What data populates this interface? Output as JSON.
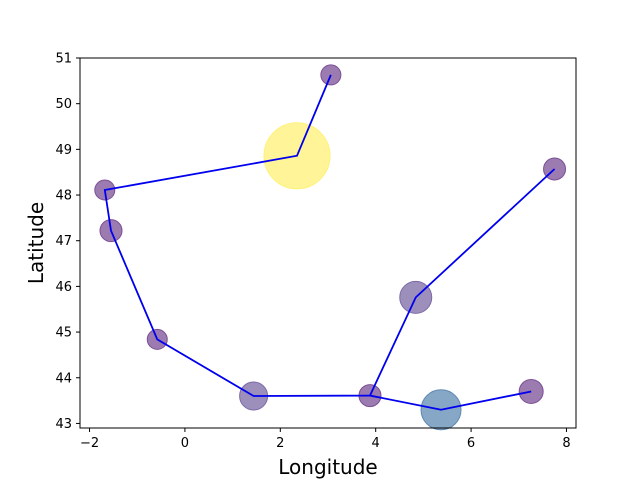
{
  "chart_data": {
    "type": "scatter",
    "xlabel": "Longitude",
    "ylabel": "Latitude",
    "xlim": [
      -2.2,
      8.2
    ],
    "ylim": [
      42.9,
      51.0
    ],
    "xticks": [
      -2,
      0,
      2,
      4,
      6,
      8
    ],
    "yticks": [
      43,
      44,
      45,
      46,
      47,
      48,
      49,
      50,
      51
    ],
    "grid": false,
    "line_color": "#0000ee",
    "points": [
      {
        "x": 3.06,
        "y": 50.63,
        "size": 10,
        "color": "#7b4f96"
      },
      {
        "x": 2.35,
        "y": 48.86,
        "size": 33,
        "color": "#fff176"
      },
      {
        "x": -1.68,
        "y": 48.11,
        "size": 10,
        "color": "#7b4f96"
      },
      {
        "x": -1.55,
        "y": 47.22,
        "size": 11,
        "color": "#7b4f96"
      },
      {
        "x": -0.58,
        "y": 44.84,
        "size": 10,
        "color": "#7b4f96"
      },
      {
        "x": 1.44,
        "y": 43.6,
        "size": 14,
        "color": "#7b6aa6"
      },
      {
        "x": 3.88,
        "y": 43.61,
        "size": 11,
        "color": "#7b4f96"
      },
      {
        "x": 4.84,
        "y": 45.76,
        "size": 16,
        "color": "#7b6aa6"
      },
      {
        "x": 7.75,
        "y": 48.57,
        "size": 11,
        "color": "#7b4f96"
      },
      {
        "x": 5.37,
        "y": 43.3,
        "size": 20,
        "color": "#5f8ab3"
      },
      {
        "x": 7.26,
        "y": 43.7,
        "size": 12,
        "color": "#7b4f96"
      }
    ],
    "paths": [
      [
        {
          "x": 3.06,
          "y": 50.63
        },
        {
          "x": 2.35,
          "y": 48.86
        },
        {
          "x": -1.68,
          "y": 48.11
        },
        {
          "x": -1.55,
          "y": 47.22
        },
        {
          "x": -0.58,
          "y": 44.84
        },
        {
          "x": 1.44,
          "y": 43.6
        },
        {
          "x": 3.88,
          "y": 43.61
        },
        {
          "x": 4.84,
          "y": 45.76
        },
        {
          "x": 7.75,
          "y": 48.57
        }
      ],
      [
        {
          "x": 3.88,
          "y": 43.61
        },
        {
          "x": 5.37,
          "y": 43.3
        },
        {
          "x": 7.26,
          "y": 43.7
        }
      ]
    ]
  }
}
